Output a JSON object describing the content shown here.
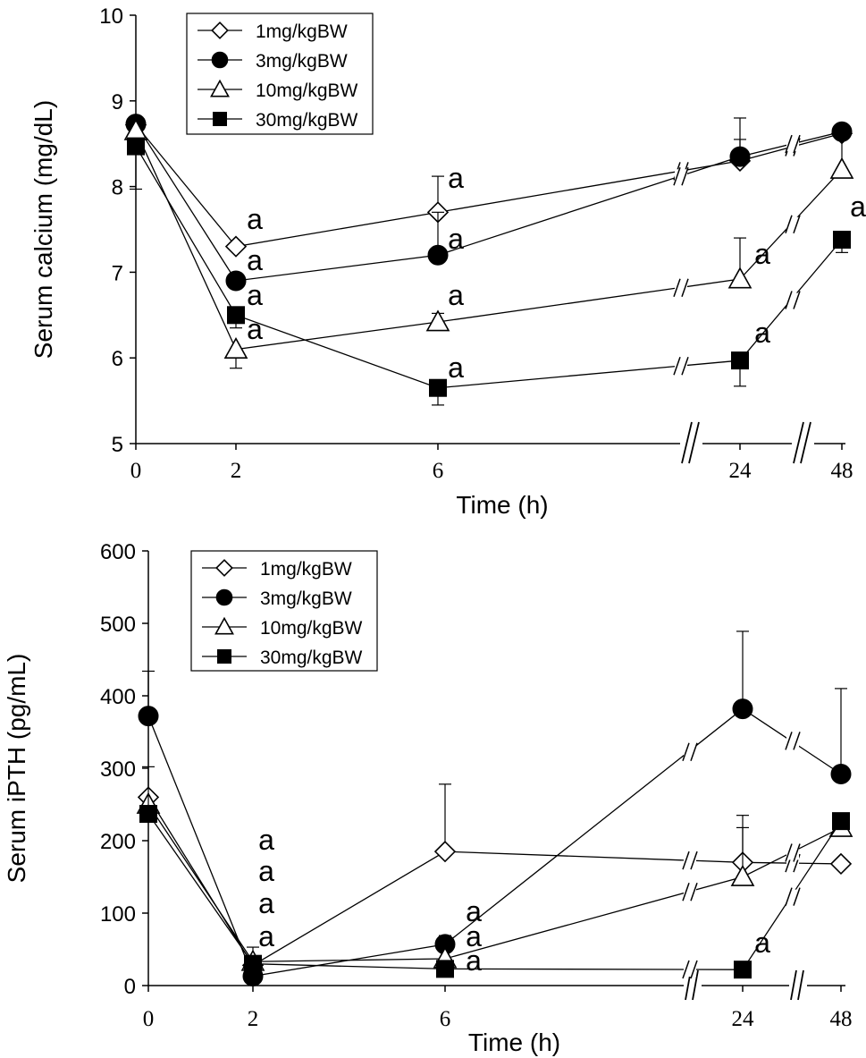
{
  "chart_data": [
    {
      "type": "line",
      "xlabel": "Time (h)",
      "ylabel": "Serum calcium (mg/dL)",
      "x": [
        0,
        2,
        6,
        24,
        48
      ],
      "x_tick_labels": [
        "0",
        "2",
        "6",
        "24",
        "48"
      ],
      "ylim": [
        5,
        10
      ],
      "y_ticks": [
        "5",
        "6",
        "7",
        "8",
        "9",
        "10"
      ],
      "axis_breaks": [
        "between 6 and 24",
        "between 24 and 48"
      ],
      "legend_position": "top-left",
      "series": [
        {
          "name": "1mg/kgBW",
          "marker": "open-diamond",
          "values": [
            8.72,
            7.3,
            7.7,
            8.3,
            8.62
          ],
          "error": [
            0,
            0,
            0.42,
            0.5,
            0
          ]
        },
        {
          "name": "3mg/kgBW",
          "marker": "filled-circle",
          "values": [
            8.73,
            6.9,
            7.2,
            8.35,
            8.64
          ],
          "error": [
            0,
            0,
            0.5,
            0.2,
            0
          ]
        },
        {
          "name": "10mg/kgBW",
          "marker": "open-triangle",
          "values": [
            8.65,
            6.1,
            6.42,
            6.92,
            8.2
          ],
          "error": [
            0,
            0.22,
            0.1,
            0.48,
            0.5
          ]
        },
        {
          "name": "30mg/kgBW",
          "marker": "filled-square",
          "values": [
            8.47,
            6.5,
            5.65,
            5.97,
            7.38
          ],
          "error": [
            0.5,
            0.15,
            0.2,
            0.3,
            0.15
          ]
        }
      ],
      "annotations": [
        {
          "text": "a",
          "x": 2,
          "y": 7.58
        },
        {
          "text": "a",
          "x": 2,
          "y": 7.1
        },
        {
          "text": "a",
          "x": 2,
          "y": 6.72
        },
        {
          "text": "a",
          "x": 2,
          "y": 6.3
        },
        {
          "text": "a",
          "x": 6,
          "y": 7.98
        },
        {
          "text": "a",
          "x": 6,
          "y": 7.32
        },
        {
          "text": "a",
          "x": 6,
          "y": 6.65
        },
        {
          "text": "a",
          "x": 6,
          "y": 5.85
        },
        {
          "text": "a",
          "x": 24,
          "y": 7.15
        },
        {
          "text": "a",
          "x": 24,
          "y": 6.22
        },
        {
          "text": "a",
          "x": 48,
          "y": 7.65
        }
      ]
    },
    {
      "type": "line",
      "xlabel": "Time (h)",
      "ylabel": "Serum iPTH (pg/mL)",
      "x": [
        0,
        2,
        6,
        24,
        48
      ],
      "x_tick_labels": [
        "0",
        "2",
        "6",
        "24",
        "48"
      ],
      "ylim": [
        0,
        600
      ],
      "y_ticks": [
        "0",
        "100",
        "200",
        "300",
        "400",
        "500",
        "600"
      ],
      "axis_breaks": [
        "between 6 and 24",
        "between 24 and 48"
      ],
      "legend_position": "top-left",
      "series": [
        {
          "name": "1mg/kgBW",
          "marker": "open-diamond",
          "values": [
            260,
            28,
            185,
            170,
            168
          ],
          "error": [
            0,
            25,
            93,
            48,
            0
          ]
        },
        {
          "name": "3mg/kgBW",
          "marker": "filled-circle",
          "values": [
            372,
            13,
            57,
            382,
            292
          ],
          "error": [
            62,
            0,
            12,
            107,
            118
          ]
        },
        {
          "name": "10mg/kgBW",
          "marker": "open-triangle",
          "values": [
            250,
            33,
            37,
            150,
            218
          ],
          "error": [
            0,
            0,
            0,
            85,
            0
          ]
        },
        {
          "name": "30mg/kgBW",
          "marker": "filled-square",
          "values": [
            237,
            30,
            23,
            22,
            227
          ],
          "error": [
            65,
            0,
            0,
            0,
            0
          ]
        }
      ],
      "annotations": [
        {
          "text": "a",
          "x": 2,
          "y": 160
        },
        {
          "text": "a",
          "x": 2,
          "y": 123
        },
        {
          "text": "a",
          "x": 2,
          "y": 88
        },
        {
          "text": "a",
          "x": 2,
          "y": 50
        },
        {
          "text": "a",
          "x": 6,
          "y": 80
        },
        {
          "text": "a",
          "x": 6,
          "y": 50
        },
        {
          "text": "a",
          "x": 6,
          "y": 18
        },
        {
          "text": "a",
          "x": 24,
          "y": 40
        }
      ]
    }
  ]
}
